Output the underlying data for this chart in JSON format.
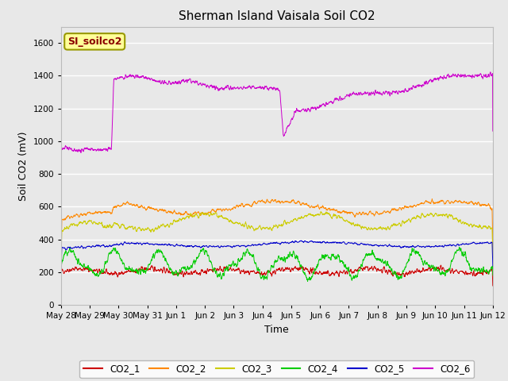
{
  "title": "Sherman Island Vaisala Soil CO2",
  "xlabel": "Time",
  "ylabel": "Soil CO2 (mV)",
  "ylim": [
    0,
    1700
  ],
  "yticks": [
    0,
    200,
    400,
    600,
    800,
    1000,
    1200,
    1400,
    1600
  ],
  "background_color": "#e8e8e8",
  "plot_bg_color": "#e8e8e8",
  "legend_label": "SI_soilco2",
  "legend_box_color": "#ffff99",
  "legend_box_edge": "#999900",
  "series_colors": {
    "CO2_1": "#cc0000",
    "CO2_2": "#ff8800",
    "CO2_3": "#cccc00",
    "CO2_4": "#00cc00",
    "CO2_5": "#0000cc",
    "CO2_6": "#cc00cc"
  },
  "xtick_labels": [
    "May 28",
    "May 29",
    "May 30",
    "May 31",
    "Jun 1",
    "Jun 2",
    "Jun 3",
    "Jun 4",
    "Jun 5",
    "Jun 6",
    "Jun 7",
    "Jun 8",
    "Jun 9",
    "Jun 10",
    "Jun 11",
    "Jun 12"
  ],
  "n_points": 2000,
  "total_days": 15
}
